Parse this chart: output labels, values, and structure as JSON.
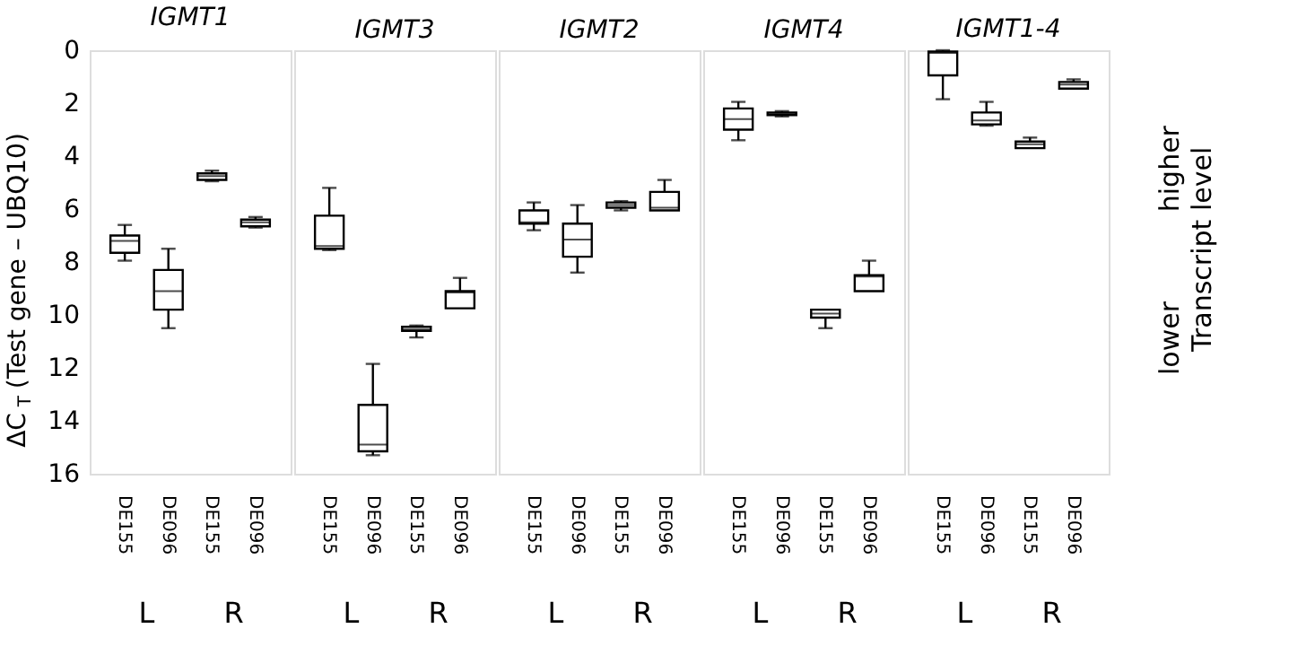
{
  "chart_data": [
    {
      "type": "box",
      "title": "IGMT1",
      "ylabel": "ΔC$_{T}$ (Test gene – UBQ10)",
      "categories": [
        "DE155",
        "DE096",
        "DE155",
        "DE096"
      ],
      "ylim": [
        16,
        0
      ],
      "yticks": [
        0,
        2,
        4,
        6,
        8,
        10,
        12,
        14,
        16
      ],
      "grid": false,
      "annotations": [
        "L",
        "R"
      ],
      "boxes": [
        {
          "low": 6.6,
          "q1": 7.0,
          "median": 7.2,
          "q3": 7.65,
          "high": 7.95
        },
        {
          "low": 7.5,
          "q1": 8.3,
          "median": 9.1,
          "q3": 9.8,
          "high": 10.5
        },
        {
          "low": 4.55,
          "q1": 4.65,
          "median": 4.75,
          "q3": 4.9,
          "high": 4.95
        },
        {
          "low": 6.3,
          "q1": 6.4,
          "median": 6.5,
          "q3": 6.65,
          "high": 6.7
        }
      ]
    },
    {
      "type": "box",
      "title": "IGMT3",
      "categories": [
        "DE155",
        "DE096",
        "DE155",
        "DE096"
      ],
      "ylim": [
        16,
        0
      ],
      "tick_labels": "x",
      "grid": false,
      "annotations": [
        "L",
        "R"
      ],
      "boxes": [
        {
          "low": 5.2,
          "q1": 6.25,
          "median": 7.4,
          "q3": 7.5,
          "high": 7.55
        },
        {
          "low": 11.85,
          "q1": 13.4,
          "median": 14.9,
          "q3": 15.15,
          "high": 15.3
        },
        {
          "low": 10.4,
          "q1": 10.45,
          "median": 10.55,
          "q3": 10.6,
          "high": 10.85
        },
        {
          "low": 8.6,
          "q1": 9.1,
          "median": 9.15,
          "q3": 9.75,
          "high": 9.75
        }
      ]
    },
    {
      "type": "box",
      "title": "IGMT2",
      "categories": [
        "DE155",
        "DE096",
        "DE155",
        "DE096"
      ],
      "ylim": [
        16,
        0
      ],
      "tick_labels": "x",
      "grid": false,
      "annotations": [
        "L",
        "R"
      ],
      "boxes": [
        {
          "low": 5.75,
          "q1": 6.05,
          "median": 6.5,
          "q3": 6.55,
          "high": 6.8
        },
        {
          "low": 5.85,
          "q1": 6.55,
          "median": 7.15,
          "q3": 7.8,
          "high": 8.4
        },
        {
          "low": 5.7,
          "q1": 5.75,
          "median": 5.85,
          "q3": 5.95,
          "high": 6.05
        },
        {
          "low": 4.9,
          "q1": 5.35,
          "median": 5.95,
          "q3": 6.05,
          "high": 6.05
        }
      ]
    },
    {
      "type": "box",
      "title": "IGMT4",
      "categories": [
        "DE155",
        "DE096",
        "DE155",
        "DE096"
      ],
      "ylim": [
        16,
        0
      ],
      "tick_labels": "x",
      "grid": false,
      "annotations": [
        "L",
        "R"
      ],
      "boxes": [
        {
          "low": 1.95,
          "q1": 2.2,
          "median": 2.6,
          "q3": 3.0,
          "high": 3.4
        },
        {
          "low": 2.3,
          "q1": 2.35,
          "median": 2.4,
          "q3": 2.45,
          "high": 2.5
        },
        {
          "low": 9.8,
          "q1": 9.8,
          "median": 9.95,
          "q3": 10.1,
          "high": 10.5
        },
        {
          "low": 7.95,
          "q1": 8.5,
          "median": 8.55,
          "q3": 9.1,
          "high": 9.1
        }
      ]
    },
    {
      "type": "box",
      "title": "IGMT1-4",
      "categories": [
        "DE155",
        "DE096",
        "DE155",
        "DE096"
      ],
      "ylim": [
        16,
        0
      ],
      "tick_labels": "x",
      "grid": false,
      "annotations": [
        "L",
        "R",
        "higher",
        "Transcript level",
        "lower"
      ],
      "boxes": [
        {
          "low": 0,
          "q1": 0.05,
          "median": 0.1,
          "q3": 0.95,
          "high": 1.85
        },
        {
          "low": 1.95,
          "q1": 2.35,
          "median": 2.65,
          "q3": 2.8,
          "high": 2.85
        },
        {
          "low": 3.3,
          "q1": 3.45,
          "median": 3.55,
          "q3": 3.7,
          "high": 3.7
        },
        {
          "low": 1.1,
          "q1": 1.2,
          "median": 1.3,
          "q3": 1.45,
          "high": 1.45
        }
      ]
    }
  ]
}
